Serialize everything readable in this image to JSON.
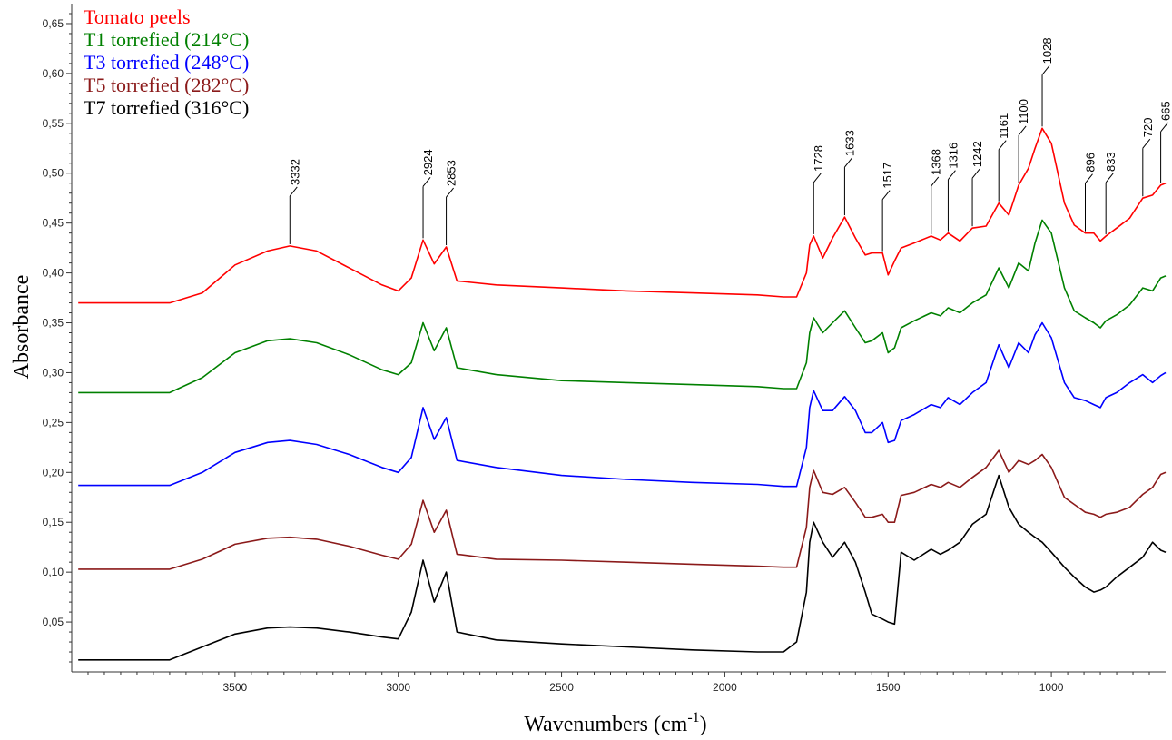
{
  "chart_data": {
    "type": "line",
    "title": "",
    "xlabel": "Wavenumbers (cm",
    "xlabel_sup": "-1",
    "xlabel_close": ")",
    "ylabel": "Absorbance",
    "xlim": [
      4000,
      650
    ],
    "ylim": [
      0.0,
      0.67
    ],
    "x_reversed": true,
    "grid": false,
    "legend_position": "top-left",
    "x_ticks": [
      3500,
      3000,
      2500,
      2000,
      1500,
      1000
    ],
    "x_tick_labels": [
      "3500",
      "3000",
      "2500",
      "2000",
      "1500",
      "1000"
    ],
    "y_ticks": [
      0.05,
      0.1,
      0.15,
      0.2,
      0.25,
      0.3,
      0.35,
      0.4,
      0.45,
      0.5,
      0.55,
      0.6,
      0.65
    ],
    "y_tick_labels": [
      "0,05",
      "0,10",
      "0,15",
      "0,20",
      "0,25",
      "0,30",
      "0,35",
      "0,40",
      "0,45",
      "0,50",
      "0,55",
      "0,60",
      "0,65"
    ],
    "series": [
      {
        "name": "Tomato peels",
        "color": "#ff0000",
        "x": [
          3980,
          3700,
          3600,
          3500,
          3400,
          3332,
          3250,
          3150,
          3050,
          3000,
          2960,
          2924,
          2890,
          2853,
          2820,
          2700,
          2500,
          2300,
          2100,
          1900,
          1820,
          1780,
          1750,
          1740,
          1728,
          1700,
          1670,
          1633,
          1600,
          1570,
          1550,
          1517,
          1500,
          1480,
          1460,
          1420,
          1368,
          1340,
          1316,
          1280,
          1242,
          1200,
          1161,
          1130,
          1100,
          1070,
          1050,
          1028,
          1000,
          960,
          930,
          896,
          870,
          850,
          833,
          800,
          760,
          720,
          690,
          665,
          650
        ],
        "y": [
          0.37,
          0.37,
          0.38,
          0.408,
          0.422,
          0.427,
          0.422,
          0.405,
          0.388,
          0.382,
          0.395,
          0.433,
          0.409,
          0.426,
          0.392,
          0.388,
          0.385,
          0.382,
          0.38,
          0.378,
          0.376,
          0.376,
          0.4,
          0.428,
          0.437,
          0.415,
          0.435,
          0.456,
          0.435,
          0.418,
          0.42,
          0.42,
          0.398,
          0.412,
          0.425,
          0.43,
          0.437,
          0.433,
          0.44,
          0.432,
          0.445,
          0.447,
          0.47,
          0.458,
          0.488,
          0.505,
          0.525,
          0.545,
          0.53,
          0.47,
          0.448,
          0.44,
          0.44,
          0.432,
          0.437,
          0.445,
          0.455,
          0.475,
          0.478,
          0.488,
          0.49
        ]
      },
      {
        "name": "T1 torrefied (214°C)",
        "color": "#008000",
        "x": [
          3980,
          3700,
          3600,
          3500,
          3400,
          3332,
          3250,
          3150,
          3050,
          3000,
          2960,
          2924,
          2890,
          2853,
          2820,
          2700,
          2500,
          2300,
          2100,
          1900,
          1820,
          1780,
          1750,
          1740,
          1728,
          1700,
          1670,
          1633,
          1600,
          1570,
          1550,
          1517,
          1500,
          1480,
          1460,
          1420,
          1368,
          1340,
          1316,
          1280,
          1242,
          1200,
          1161,
          1130,
          1100,
          1070,
          1050,
          1028,
          1000,
          960,
          930,
          896,
          870,
          850,
          833,
          800,
          760,
          720,
          690,
          665,
          650
        ],
        "y": [
          0.28,
          0.28,
          0.295,
          0.32,
          0.332,
          0.334,
          0.33,
          0.318,
          0.303,
          0.298,
          0.31,
          0.35,
          0.322,
          0.345,
          0.305,
          0.298,
          0.292,
          0.29,
          0.288,
          0.286,
          0.284,
          0.284,
          0.31,
          0.34,
          0.355,
          0.34,
          0.35,
          0.362,
          0.345,
          0.33,
          0.332,
          0.34,
          0.32,
          0.325,
          0.345,
          0.352,
          0.36,
          0.357,
          0.365,
          0.36,
          0.37,
          0.378,
          0.405,
          0.385,
          0.41,
          0.402,
          0.43,
          0.453,
          0.44,
          0.385,
          0.362,
          0.355,
          0.35,
          0.345,
          0.352,
          0.358,
          0.368,
          0.385,
          0.382,
          0.395,
          0.397
        ]
      },
      {
        "name": "T3 torrefied (248°C)",
        "color": "#0000ff",
        "x": [
          3980,
          3700,
          3600,
          3500,
          3400,
          3332,
          3250,
          3150,
          3050,
          3000,
          2960,
          2924,
          2890,
          2853,
          2820,
          2700,
          2500,
          2300,
          2100,
          1900,
          1820,
          1780,
          1750,
          1740,
          1728,
          1700,
          1670,
          1633,
          1600,
          1570,
          1550,
          1517,
          1500,
          1480,
          1460,
          1420,
          1368,
          1340,
          1316,
          1280,
          1242,
          1200,
          1161,
          1130,
          1100,
          1070,
          1050,
          1028,
          1000,
          960,
          930,
          896,
          870,
          850,
          833,
          800,
          760,
          720,
          690,
          665,
          650
        ],
        "y": [
          0.187,
          0.187,
          0.2,
          0.22,
          0.23,
          0.232,
          0.228,
          0.218,
          0.205,
          0.2,
          0.215,
          0.265,
          0.233,
          0.255,
          0.212,
          0.205,
          0.197,
          0.193,
          0.19,
          0.188,
          0.186,
          0.186,
          0.225,
          0.265,
          0.282,
          0.262,
          0.262,
          0.276,
          0.262,
          0.24,
          0.24,
          0.25,
          0.23,
          0.232,
          0.252,
          0.258,
          0.268,
          0.265,
          0.275,
          0.268,
          0.28,
          0.29,
          0.328,
          0.305,
          0.33,
          0.32,
          0.338,
          0.35,
          0.335,
          0.29,
          0.275,
          0.272,
          0.268,
          0.265,
          0.275,
          0.28,
          0.29,
          0.298,
          0.29,
          0.297,
          0.3
        ]
      },
      {
        "name": "T5 torrefied (282°C)",
        "color": "#8b1a1a",
        "x": [
          3980,
          3700,
          3600,
          3500,
          3400,
          3332,
          3250,
          3150,
          3050,
          3000,
          2960,
          2924,
          2890,
          2853,
          2820,
          2700,
          2500,
          2300,
          2100,
          1900,
          1820,
          1780,
          1750,
          1740,
          1728,
          1700,
          1670,
          1633,
          1600,
          1570,
          1550,
          1517,
          1500,
          1480,
          1460,
          1420,
          1368,
          1340,
          1316,
          1280,
          1242,
          1200,
          1161,
          1130,
          1100,
          1070,
          1050,
          1028,
          1000,
          960,
          930,
          896,
          870,
          850,
          833,
          800,
          760,
          720,
          690,
          665,
          650
        ],
        "y": [
          0.103,
          0.103,
          0.113,
          0.128,
          0.134,
          0.135,
          0.133,
          0.126,
          0.117,
          0.113,
          0.128,
          0.172,
          0.14,
          0.162,
          0.118,
          0.113,
          0.112,
          0.11,
          0.108,
          0.106,
          0.105,
          0.105,
          0.145,
          0.185,
          0.202,
          0.18,
          0.178,
          0.185,
          0.17,
          0.155,
          0.155,
          0.158,
          0.15,
          0.15,
          0.177,
          0.18,
          0.188,
          0.185,
          0.19,
          0.185,
          0.195,
          0.205,
          0.222,
          0.2,
          0.212,
          0.208,
          0.212,
          0.218,
          0.205,
          0.175,
          0.168,
          0.16,
          0.158,
          0.155,
          0.158,
          0.16,
          0.165,
          0.178,
          0.185,
          0.198,
          0.2
        ]
      },
      {
        "name": "T7 torrefied (316°C)",
        "color": "#000000",
        "x": [
          3980,
          3700,
          3600,
          3500,
          3400,
          3332,
          3250,
          3150,
          3050,
          3000,
          2960,
          2924,
          2890,
          2853,
          2820,
          2700,
          2500,
          2300,
          2100,
          1900,
          1820,
          1780,
          1750,
          1740,
          1728,
          1700,
          1670,
          1633,
          1600,
          1570,
          1550,
          1517,
          1500,
          1480,
          1460,
          1420,
          1368,
          1340,
          1316,
          1280,
          1242,
          1200,
          1161,
          1130,
          1100,
          1070,
          1050,
          1028,
          1000,
          960,
          930,
          896,
          870,
          850,
          833,
          800,
          760,
          720,
          690,
          665,
          650
        ],
        "y": [
          0.012,
          0.012,
          0.025,
          0.038,
          0.044,
          0.045,
          0.044,
          0.04,
          0.035,
          0.033,
          0.06,
          0.112,
          0.07,
          0.1,
          0.04,
          0.032,
          0.028,
          0.025,
          0.022,
          0.02,
          0.02,
          0.03,
          0.08,
          0.13,
          0.15,
          0.13,
          0.115,
          0.13,
          0.11,
          0.08,
          0.058,
          0.053,
          0.05,
          0.048,
          0.12,
          0.112,
          0.123,
          0.118,
          0.122,
          0.13,
          0.148,
          0.158,
          0.197,
          0.165,
          0.148,
          0.14,
          0.135,
          0.13,
          0.12,
          0.105,
          0.095,
          0.085,
          0.08,
          0.082,
          0.085,
          0.095,
          0.105,
          0.115,
          0.13,
          0.122,
          0.12
        ]
      }
    ],
    "annotations": [
      {
        "label": "3332",
        "x": 3332,
        "y": 0.427
      },
      {
        "label": "2924",
        "x": 2924,
        "y": 0.433
      },
      {
        "label": "2853",
        "x": 2853,
        "y": 0.426
      },
      {
        "label": "1728",
        "x": 1728,
        "y": 0.437
      },
      {
        "label": "1633",
        "x": 1633,
        "y": 0.456
      },
      {
        "label": "1517",
        "x": 1517,
        "y": 0.42
      },
      {
        "label": "1368",
        "x": 1368,
        "y": 0.437
      },
      {
        "label": "1316",
        "x": 1316,
        "y": 0.44
      },
      {
        "label": "1242",
        "x": 1242,
        "y": 0.445
      },
      {
        "label": "1161",
        "x": 1161,
        "y": 0.47
      },
      {
        "label": "1100",
        "x": 1100,
        "y": 0.488
      },
      {
        "label": "1028",
        "x": 1028,
        "y": 0.545
      },
      {
        "label": "896",
        "x": 896,
        "y": 0.44
      },
      {
        "label": "833",
        "x": 833,
        "y": 0.437
      },
      {
        "label": "720",
        "x": 720,
        "y": 0.475
      },
      {
        "label": "665",
        "x": 665,
        "y": 0.488
      }
    ]
  }
}
